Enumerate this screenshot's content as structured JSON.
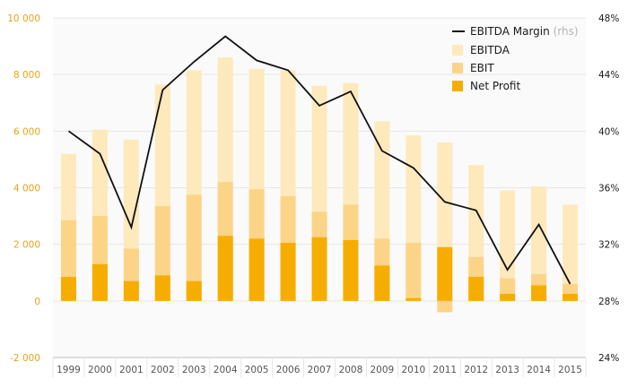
{
  "chart_data": {
    "type": "bar",
    "categories": [
      "1999",
      "2000",
      "2001",
      "2002",
      "2003",
      "2004",
      "2005",
      "2006",
      "2007",
      "2008",
      "2009",
      "2010",
      "2011",
      "2012",
      "2013",
      "2014",
      "2015"
    ],
    "series": [
      {
        "name": "EBITDA",
        "kind": "bar",
        "axis": "left",
        "color": "#fde9bb",
        "values": [
          5200,
          6050,
          5700,
          7650,
          8150,
          8600,
          8200,
          8150,
          7600,
          7700,
          6350,
          5850,
          5600,
          4800,
          3900,
          4050,
          3400
        ]
      },
      {
        "name": "EBIT",
        "kind": "bar",
        "axis": "left",
        "color": "#fcd488",
        "values": [
          2850,
          3000,
          1850,
          3350,
          3750,
          4200,
          3950,
          3700,
          3150,
          3400,
          2200,
          2050,
          -400,
          1550,
          800,
          950,
          600
        ]
      },
      {
        "name": "Net Profit",
        "kind": "bar",
        "axis": "left",
        "color": "#f6ad00",
        "values": [
          850,
          1300,
          700,
          900,
          700,
          2300,
          2200,
          2050,
          2250,
          2150,
          1250,
          100,
          1900,
          850,
          250,
          550,
          250
        ]
      },
      {
        "name": "EBITDA Margin",
        "note": "(rhs)",
        "kind": "line",
        "axis": "right",
        "color": "#111111",
        "values": [
          40.0,
          38.4,
          33.2,
          42.9,
          44.9,
          46.7,
          45.0,
          44.3,
          41.8,
          42.8,
          38.6,
          37.4,
          35.0,
          34.4,
          30.2,
          33.4,
          29.2
        ]
      }
    ],
    "ylim_left": [
      -2000,
      10000
    ],
    "ylim_right": [
      24,
      48
    ],
    "yticks_left": [
      "-2 000",
      "0",
      "2 000",
      "4 000",
      "6 000",
      "8 000",
      "10 000"
    ],
    "yticks_right": [
      "24%",
      "28%",
      "32%",
      "36%",
      "40%",
      "44%",
      "48%"
    ],
    "grid": true,
    "legend_position": "top-right",
    "colors": {
      "left_axis_text": "#e8a317",
      "grid": "#e6e6e6",
      "axis": "#bfbfbf"
    }
  }
}
